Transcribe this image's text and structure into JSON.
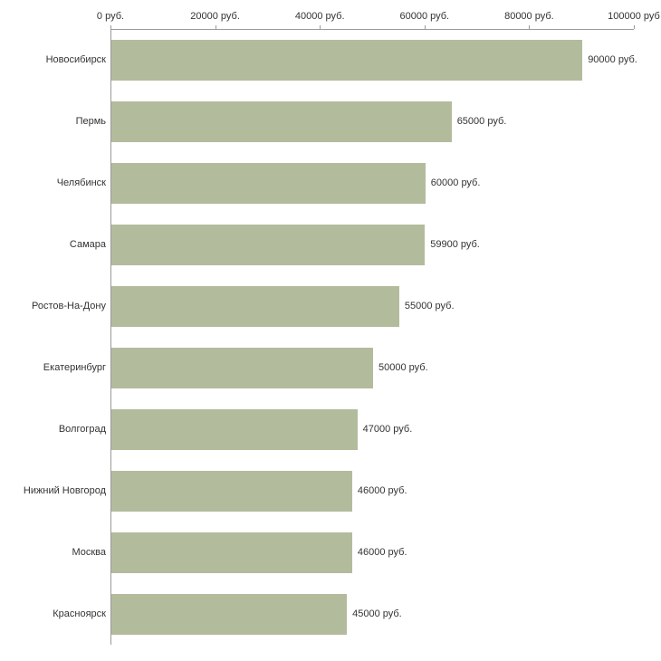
{
  "chart_data": {
    "type": "bar",
    "orientation": "horizontal",
    "title": "",
    "xlabel": "",
    "ylabel": "",
    "categories": [
      "Новосибирск",
      "Пермь",
      "Челябинск",
      "Самара",
      "Ростов-На-Дону",
      "Екатеринбург",
      "Волгоград",
      "Нижний Новгород",
      "Москва",
      "Красноярск"
    ],
    "values": [
      90000,
      65000,
      60000,
      59900,
      55000,
      50000,
      47000,
      46000,
      46000,
      45000
    ],
    "value_labels": [
      "90000 руб.",
      "65000 руб.",
      "60000 руб.",
      "59900 руб.",
      "55000 руб.",
      "50000 руб.",
      "47000 руб.",
      "46000 руб.",
      "46000 руб.",
      "45000 руб."
    ],
    "x_ticks": [
      0,
      20000,
      40000,
      60000,
      80000,
      100000
    ],
    "x_tick_labels": [
      "0 руб.",
      "20000 руб.",
      "40000 руб.",
      "60000 руб.",
      "80000 руб.",
      "100000 руб"
    ],
    "xlim": [
      0,
      100000
    ],
    "grid": false,
    "legend": false,
    "bar_color": "#b3bb9d",
    "axis_color": "#9a9a9a",
    "text_color": "#333333"
  }
}
